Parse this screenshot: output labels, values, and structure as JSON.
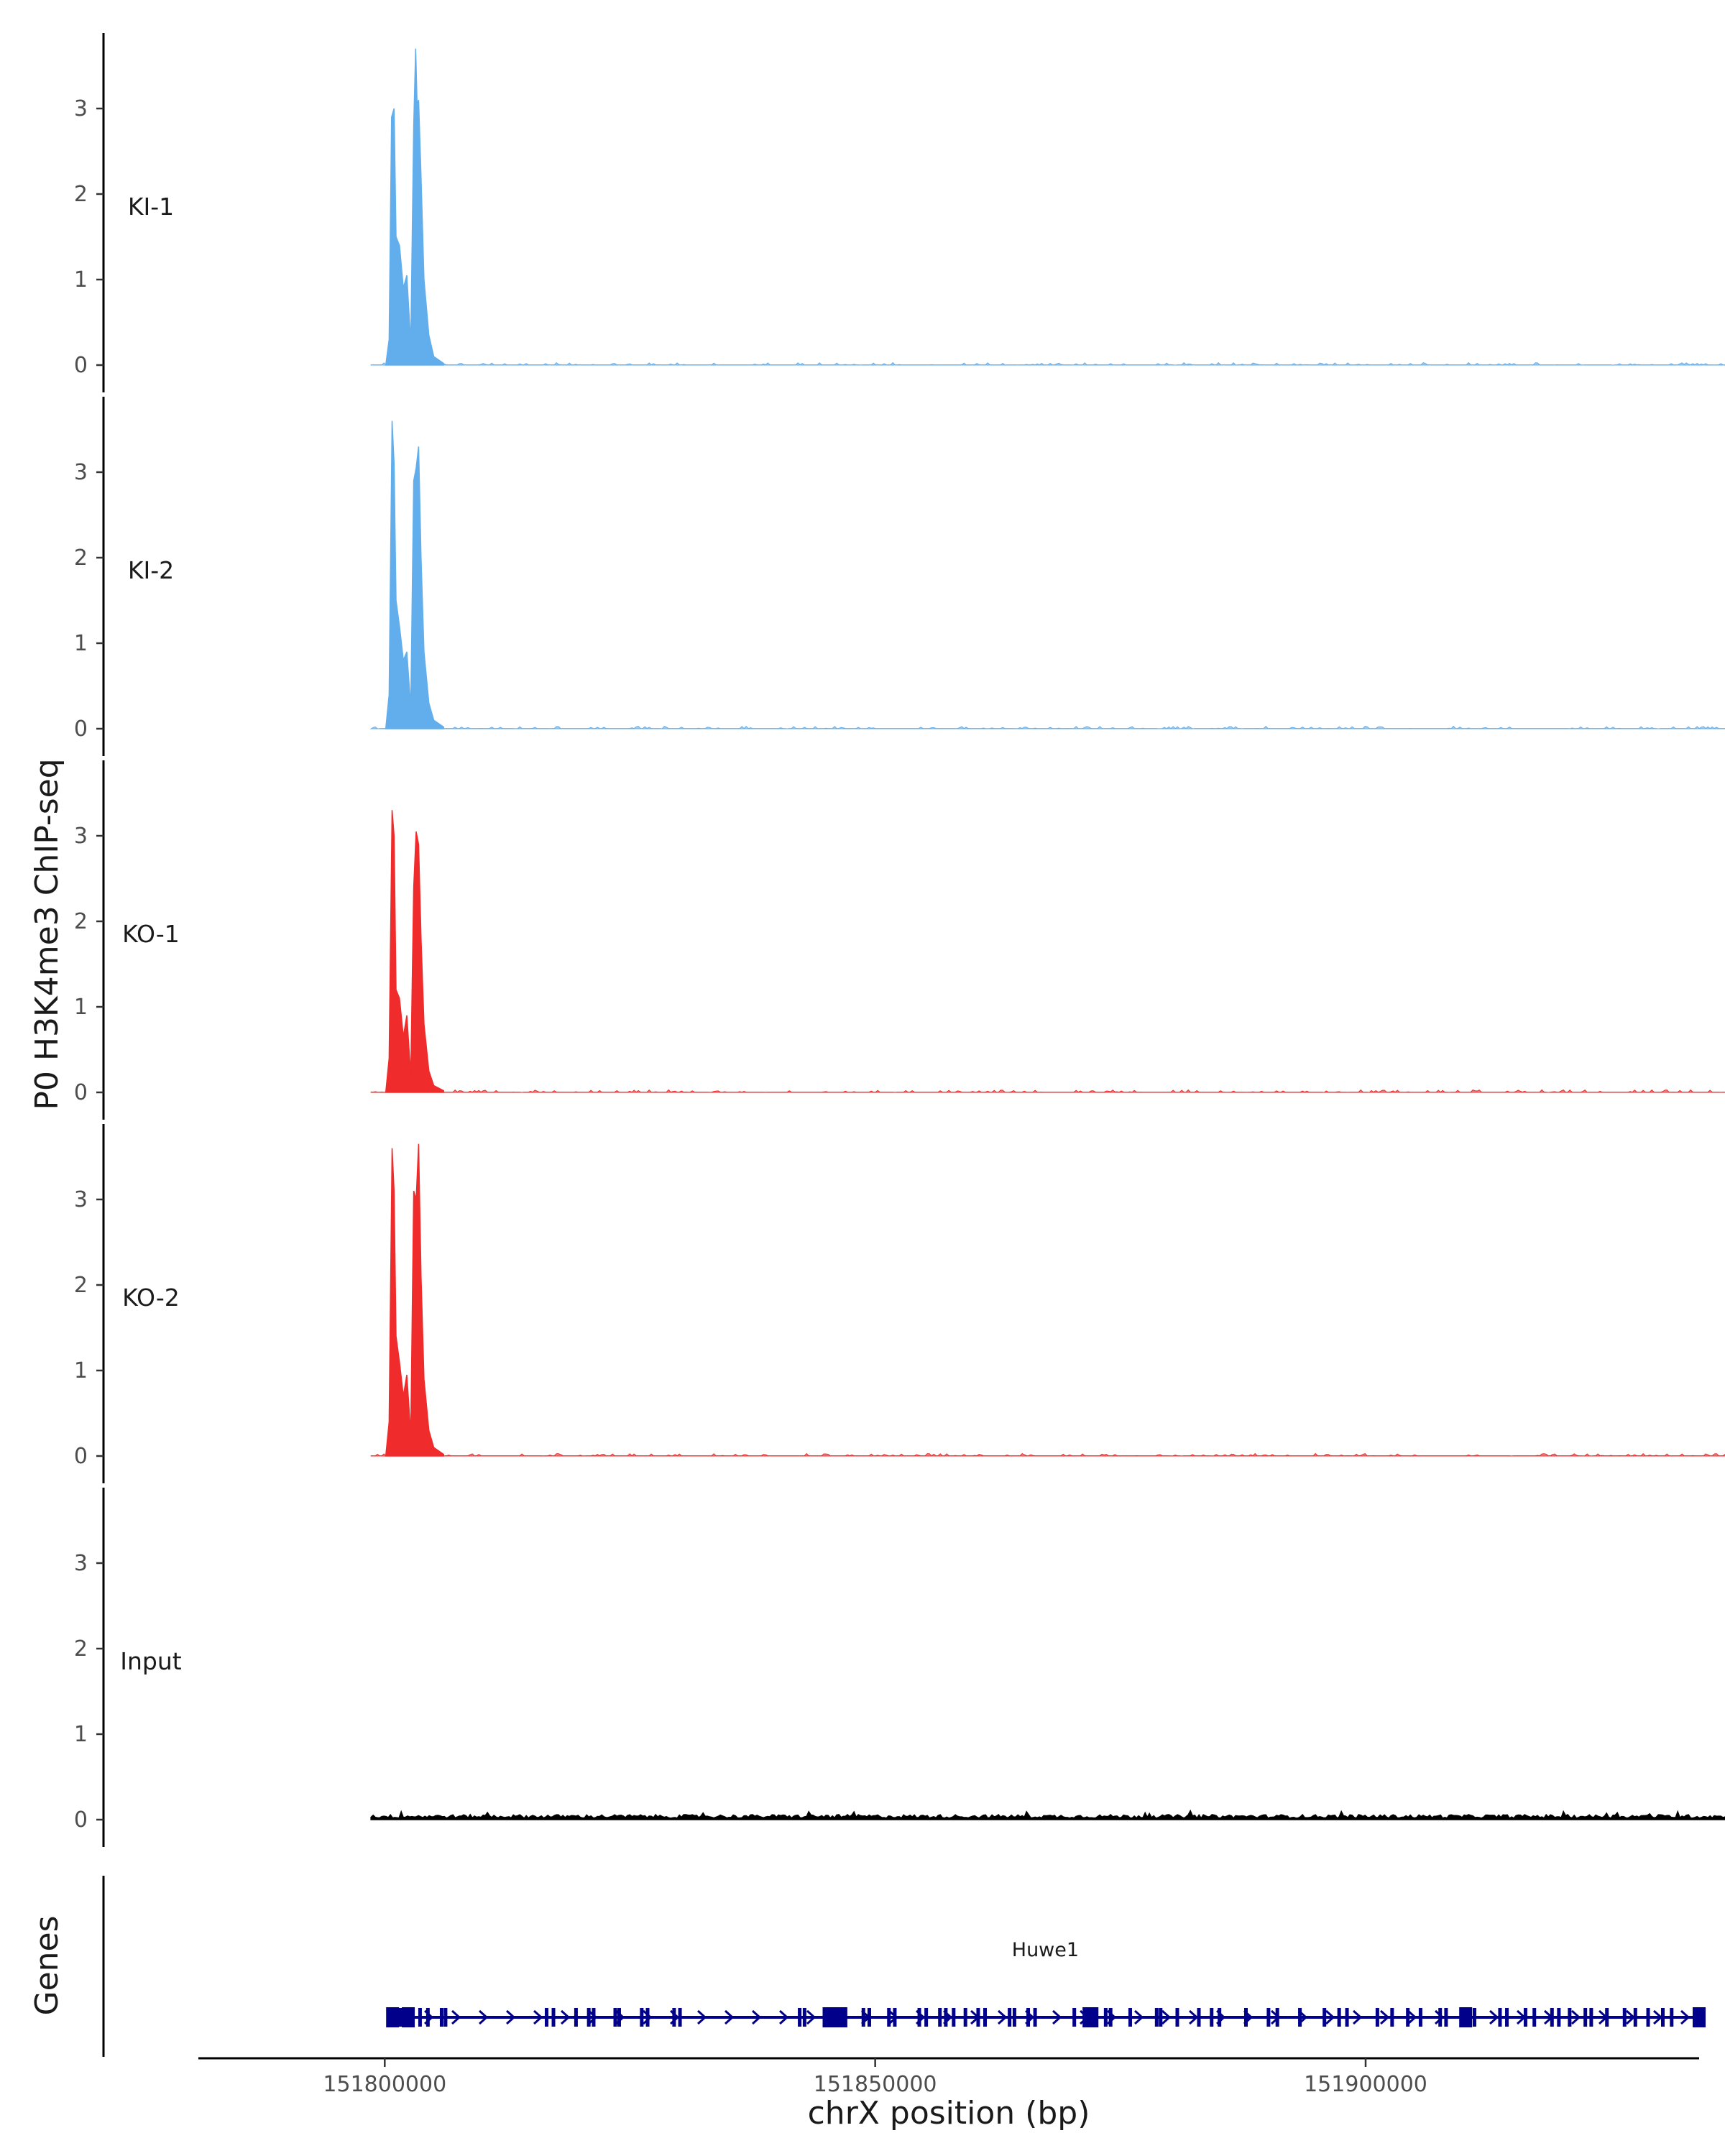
{
  "chart_data": {
    "type": "area",
    "ylabel": "P0 H3K4me3 ChIP-seq",
    "xlabel": "chrX position (bp)",
    "genes_label": "Genes",
    "xlim": [
      151781000,
      151934000
    ],
    "x_ticks": [
      151800000,
      151850000,
      151900000
    ],
    "x_tick_labels": [
      "151800000",
      "151850000",
      "151900000"
    ],
    "ylim": [
      0,
      3.9
    ],
    "y_ticks": [
      0,
      1,
      2,
      3
    ],
    "y_tick_labels": [
      "0",
      "1",
      "2",
      "3"
    ],
    "signal_range_bp": [
      151798600,
      151937900
    ],
    "tracks": [
      {
        "name": "KI-1",
        "color": "#62aeec",
        "peaks": [
          {
            "x": 151800100,
            "y": 0.0
          },
          {
            "x": 151800450,
            "y": 0.3
          },
          {
            "x": 151800700,
            "y": 2.9
          },
          {
            "x": 151800950,
            "y": 3.0
          },
          {
            "x": 151801150,
            "y": 1.5
          },
          {
            "x": 151801500,
            "y": 1.4
          },
          {
            "x": 151801900,
            "y": 0.9
          },
          {
            "x": 151802250,
            "y": 1.05
          },
          {
            "x": 151802650,
            "y": 0.25
          },
          {
            "x": 151802950,
            "y": 2.8
          },
          {
            "x": 151803150,
            "y": 3.7
          },
          {
            "x": 151803300,
            "y": 3.05
          },
          {
            "x": 151803450,
            "y": 3.1
          },
          {
            "x": 151803700,
            "y": 2.2
          },
          {
            "x": 151804000,
            "y": 1.0
          },
          {
            "x": 151804500,
            "y": 0.35
          },
          {
            "x": 151805000,
            "y": 0.1
          },
          {
            "x": 151806000,
            "y": 0.02
          }
        ]
      },
      {
        "name": "KI-2",
        "color": "#62aeec",
        "peaks": [
          {
            "x": 151800100,
            "y": 0.0
          },
          {
            "x": 151800450,
            "y": 0.4
          },
          {
            "x": 151800750,
            "y": 3.6
          },
          {
            "x": 151800950,
            "y": 3.1
          },
          {
            "x": 151801150,
            "y": 1.5
          },
          {
            "x": 151801500,
            "y": 1.2
          },
          {
            "x": 151801900,
            "y": 0.8
          },
          {
            "x": 151802250,
            "y": 0.9
          },
          {
            "x": 151802650,
            "y": 0.25
          },
          {
            "x": 151802950,
            "y": 2.9
          },
          {
            "x": 151803200,
            "y": 3.05
          },
          {
            "x": 151803450,
            "y": 3.3
          },
          {
            "x": 151803700,
            "y": 2.0
          },
          {
            "x": 151804000,
            "y": 0.9
          },
          {
            "x": 151804500,
            "y": 0.3
          },
          {
            "x": 151805000,
            "y": 0.1
          },
          {
            "x": 151806000,
            "y": 0.02
          }
        ]
      },
      {
        "name": "KO-1",
        "color": "#ef2b2b",
        "peaks": [
          {
            "x": 151800100,
            "y": 0.0
          },
          {
            "x": 151800450,
            "y": 0.4
          },
          {
            "x": 151800750,
            "y": 3.3
          },
          {
            "x": 151800950,
            "y": 3.0
          },
          {
            "x": 151801150,
            "y": 1.2
          },
          {
            "x": 151801500,
            "y": 1.1
          },
          {
            "x": 151801900,
            "y": 0.65
          },
          {
            "x": 151802250,
            "y": 0.9
          },
          {
            "x": 151802650,
            "y": 0.2
          },
          {
            "x": 151802950,
            "y": 2.4
          },
          {
            "x": 151803200,
            "y": 3.05
          },
          {
            "x": 151803450,
            "y": 2.9
          },
          {
            "x": 151803700,
            "y": 1.8
          },
          {
            "x": 151804000,
            "y": 0.8
          },
          {
            "x": 151804500,
            "y": 0.25
          },
          {
            "x": 151805000,
            "y": 0.08
          },
          {
            "x": 151806000,
            "y": 0.02
          }
        ]
      },
      {
        "name": "KO-2",
        "color": "#ef2b2b",
        "peaks": [
          {
            "x": 151800100,
            "y": 0.0
          },
          {
            "x": 151800450,
            "y": 0.4
          },
          {
            "x": 151800750,
            "y": 3.6
          },
          {
            "x": 151800950,
            "y": 3.1
          },
          {
            "x": 151801150,
            "y": 1.4
          },
          {
            "x": 151801500,
            "y": 1.1
          },
          {
            "x": 151801900,
            "y": 0.7
          },
          {
            "x": 151802250,
            "y": 0.95
          },
          {
            "x": 151802650,
            "y": 0.25
          },
          {
            "x": 151802950,
            "y": 3.1
          },
          {
            "x": 151803200,
            "y": 3.0
          },
          {
            "x": 151803450,
            "y": 3.65
          },
          {
            "x": 151803700,
            "y": 2.1
          },
          {
            "x": 151804000,
            "y": 0.9
          },
          {
            "x": 151804500,
            "y": 0.3
          },
          {
            "x": 151805000,
            "y": 0.1
          },
          {
            "x": 151806000,
            "y": 0.02
          }
        ]
      },
      {
        "name": "Input",
        "color": "#000000",
        "peaks": [
          {
            "x": 151798600,
            "y": 0.04
          },
          {
            "x": 151937900,
            "y": 0.04
          }
        ]
      }
    ],
    "genes": [
      {
        "name": "Huwe1",
        "strand": "+",
        "color": "#00008b",
        "start": 151800200,
        "end": 151934500,
        "exons": [
          151800400,
          151801000,
          151801600,
          151802500,
          151803600,
          151804400,
          151805800,
          151806200,
          151816500,
          151817200,
          151819500,
          151820800,
          151821300,
          151823500,
          151823900,
          151826200,
          151826800,
          151829500,
          151830100,
          151842300,
          151842800,
          151845400,
          151846300,
          151846800,
          151848800,
          151849400,
          151851400,
          151852000,
          151854500,
          151855200,
          151856600,
          151857200,
          151858000,
          151859200,
          151860500,
          151861200,
          151863700,
          151864200,
          151865600,
          151866300,
          151870300,
          151871500,
          151872300,
          151873500,
          151874000,
          151876000,
          151878700,
          151879100,
          151880800,
          151883000,
          151884300,
          151885100,
          151887800,
          151890100,
          151891000,
          151893300,
          151895800,
          151897300,
          151898100,
          151901200,
          151902700,
          151904300,
          151905600,
          151907600,
          151908200,
          151909900,
          151911100,
          151913700,
          151914400,
          151916300,
          151917200,
          151919000,
          151919700,
          151920800,
          151922400,
          151923000,
          151924600,
          151926400,
          151927500,
          151928800,
          151930300,
          151931200
        ],
        "big_exons": [
          151800800,
          151802400,
          151845300,
          151845900,
          151846500,
          151871800,
          151872100,
          151910200,
          151934000
        ]
      }
    ]
  }
}
